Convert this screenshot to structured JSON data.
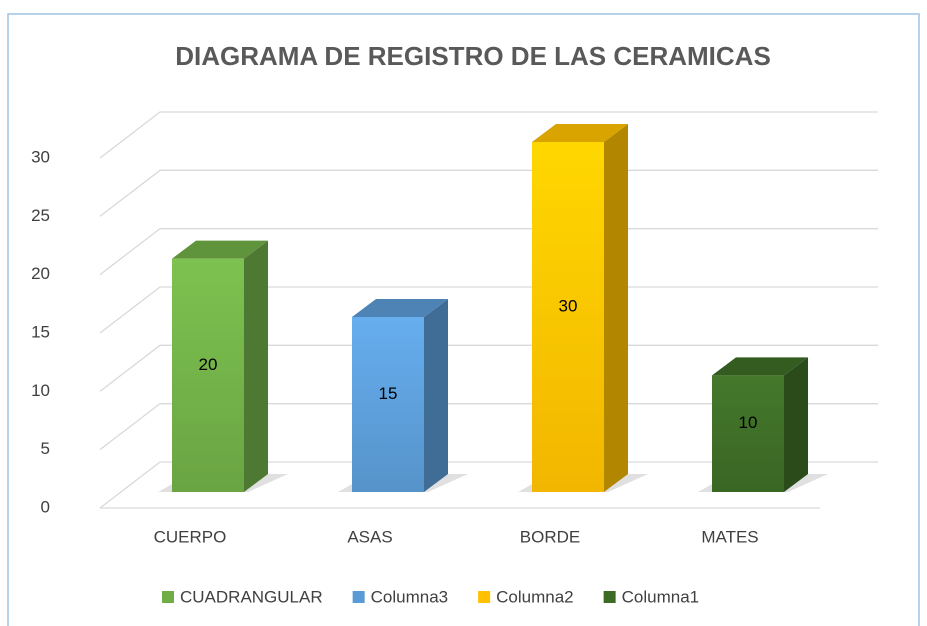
{
  "chart_data": {
    "type": "bar3d",
    "title": "DIAGRAMA DE REGISTRO DE LAS CERAMICAS",
    "categories": [
      "CUERPO",
      "ASAS",
      "BORDE",
      "MATES"
    ],
    "series": [
      {
        "name": "CUADRANGULAR",
        "color": "#70ad47",
        "values": [
          20,
          null,
          null,
          null
        ]
      },
      {
        "name": "Columna3",
        "color": "#5b9bd5",
        "values": [
          null,
          15,
          null,
          null
        ]
      },
      {
        "name": "Columna2",
        "color": "#ffc000",
        "values": [
          null,
          null,
          30,
          null
        ]
      },
      {
        "name": "Columna1",
        "color": "#3d6b26",
        "values": [
          null,
          null,
          null,
          10
        ]
      }
    ],
    "ylim": [
      0,
      30
    ],
    "yticks": [
      0,
      5,
      10,
      15,
      20,
      25,
      30
    ],
    "grid": true,
    "legend": "bottom",
    "data_labels": true
  }
}
